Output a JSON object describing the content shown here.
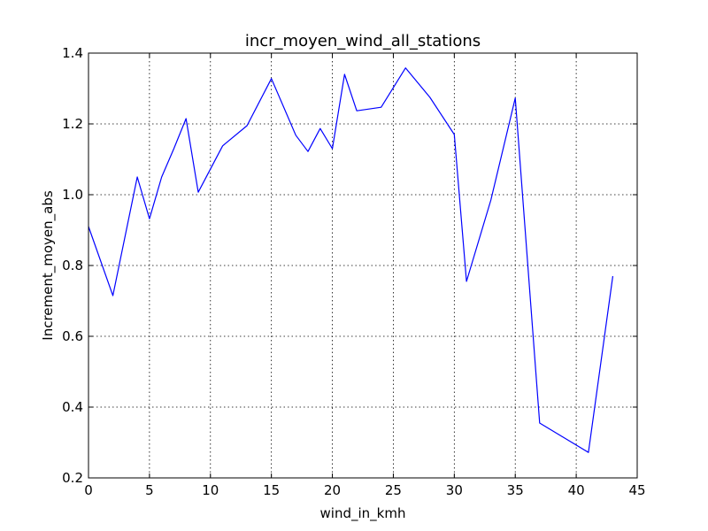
{
  "chart_data": {
    "type": "line",
    "title": "incr_moyen_wind_all_stations",
    "xlabel": "wind_in_kmh",
    "ylabel": "Increment_moyen_abs",
    "xlim": [
      0,
      45
    ],
    "ylim": [
      0.2,
      1.4
    ],
    "xticks": [
      0,
      5,
      10,
      15,
      20,
      25,
      30,
      35,
      40,
      45
    ],
    "yticks": [
      0.2,
      0.4,
      0.6,
      0.8,
      1.0,
      1.2,
      1.4
    ],
    "grid": true,
    "series": [
      {
        "color": "#0000ff",
        "x": [
          0,
          2,
          4,
          5,
          6,
          7,
          8,
          9,
          11,
          13,
          15,
          17,
          18,
          19,
          20,
          21,
          22,
          24,
          26,
          28,
          30,
          31,
          33,
          35,
          37,
          41,
          43
        ],
        "y": [
          0.91,
          0.715,
          1.05,
          0.932,
          1.05,
          1.13,
          1.215,
          1.007,
          1.138,
          1.195,
          1.328,
          1.168,
          1.122,
          1.187,
          1.13,
          1.34,
          1.237,
          1.247,
          1.358,
          1.275,
          1.17,
          0.755,
          0.985,
          1.273,
          0.355,
          0.272,
          0.77
        ]
      }
    ]
  }
}
